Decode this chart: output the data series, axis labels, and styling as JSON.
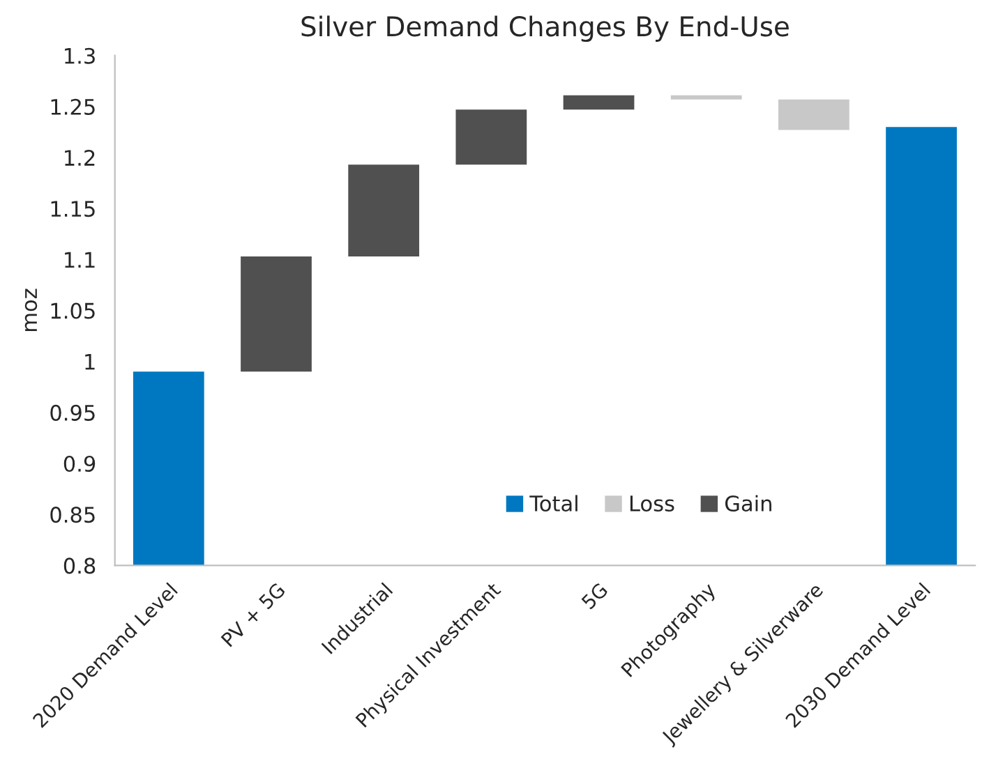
{
  "chart_data": {
    "type": "bar",
    "title": "Silver Demand Changes By End-Use",
    "ylabel": "moz",
    "categories": [
      "2020 Demand Level",
      "PV + 5G",
      "Industrial",
      "Physical Investment",
      "5G",
      "Photography",
      "Jewellery & Silverware",
      "2030 Demand Level"
    ],
    "series": [
      {
        "name": "Total",
        "color": "#0078c1",
        "values": [
          0.99,
          null,
          null,
          null,
          null,
          null,
          null,
          1.23
        ]
      },
      {
        "name": "Loss",
        "color": "#c8c8c8",
        "values": [
          null,
          null,
          null,
          null,
          null,
          -0.004,
          -0.03,
          null
        ],
        "base": [
          null,
          null,
          null,
          null,
          null,
          1.261,
          1.257,
          null
        ]
      },
      {
        "name": "Gain",
        "color": "#505050",
        "values": [
          null,
          0.113,
          0.09,
          0.054,
          0.014,
          null,
          null,
          null
        ],
        "base": [
          null,
          0.99,
          1.103,
          1.193,
          1.247,
          null,
          null,
          null
        ]
      }
    ],
    "ylim": [
      0.8,
      1.3
    ],
    "yticks": [
      0.8,
      0.85,
      0.9,
      0.95,
      1,
      1.05,
      1.1,
      1.15,
      1.2,
      1.25,
      1.3
    ],
    "grid": false,
    "legend": "bottom"
  }
}
